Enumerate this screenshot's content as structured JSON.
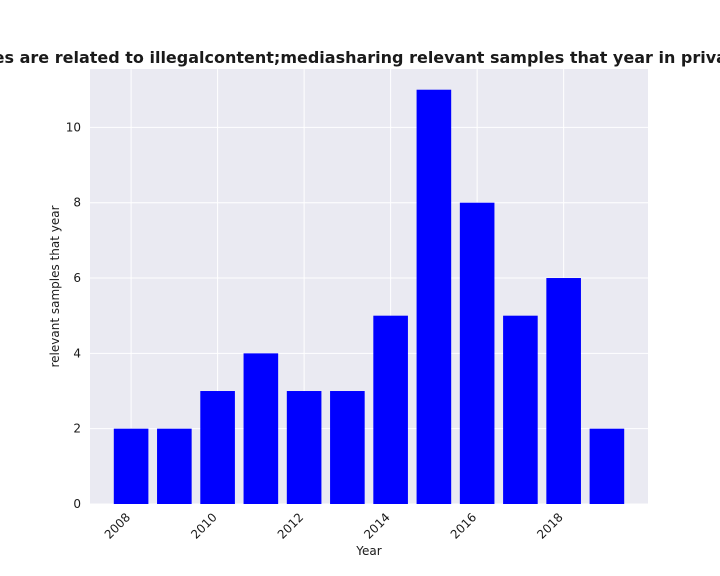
{
  "chart_data": {
    "type": "bar",
    "title": "Categories are related to illegalcontent;mediasharing relevant samples that year in privacy policies",
    "xlabel": "Year",
    "ylabel": "relevant samples that year",
    "x": [
      2008,
      2009,
      2010,
      2011,
      2012,
      2013,
      2014,
      2015,
      2016,
      2017,
      2018,
      2019
    ],
    "values": [
      2,
      2,
      3,
      4,
      3,
      3,
      5,
      11,
      8,
      5,
      6,
      2
    ],
    "xticks": [
      2008,
      2010,
      2012,
      2014,
      2016,
      2018
    ],
    "yticks": [
      0,
      2,
      4,
      6,
      8,
      10
    ],
    "xlim": [
      2007.05,
      2019.95
    ],
    "ylim": [
      0,
      11.55
    ],
    "bar_color": "#0000ff",
    "plot_background": "#eaeaf2",
    "grid_color": "#ffffff",
    "grid": true,
    "legend": "none"
  }
}
